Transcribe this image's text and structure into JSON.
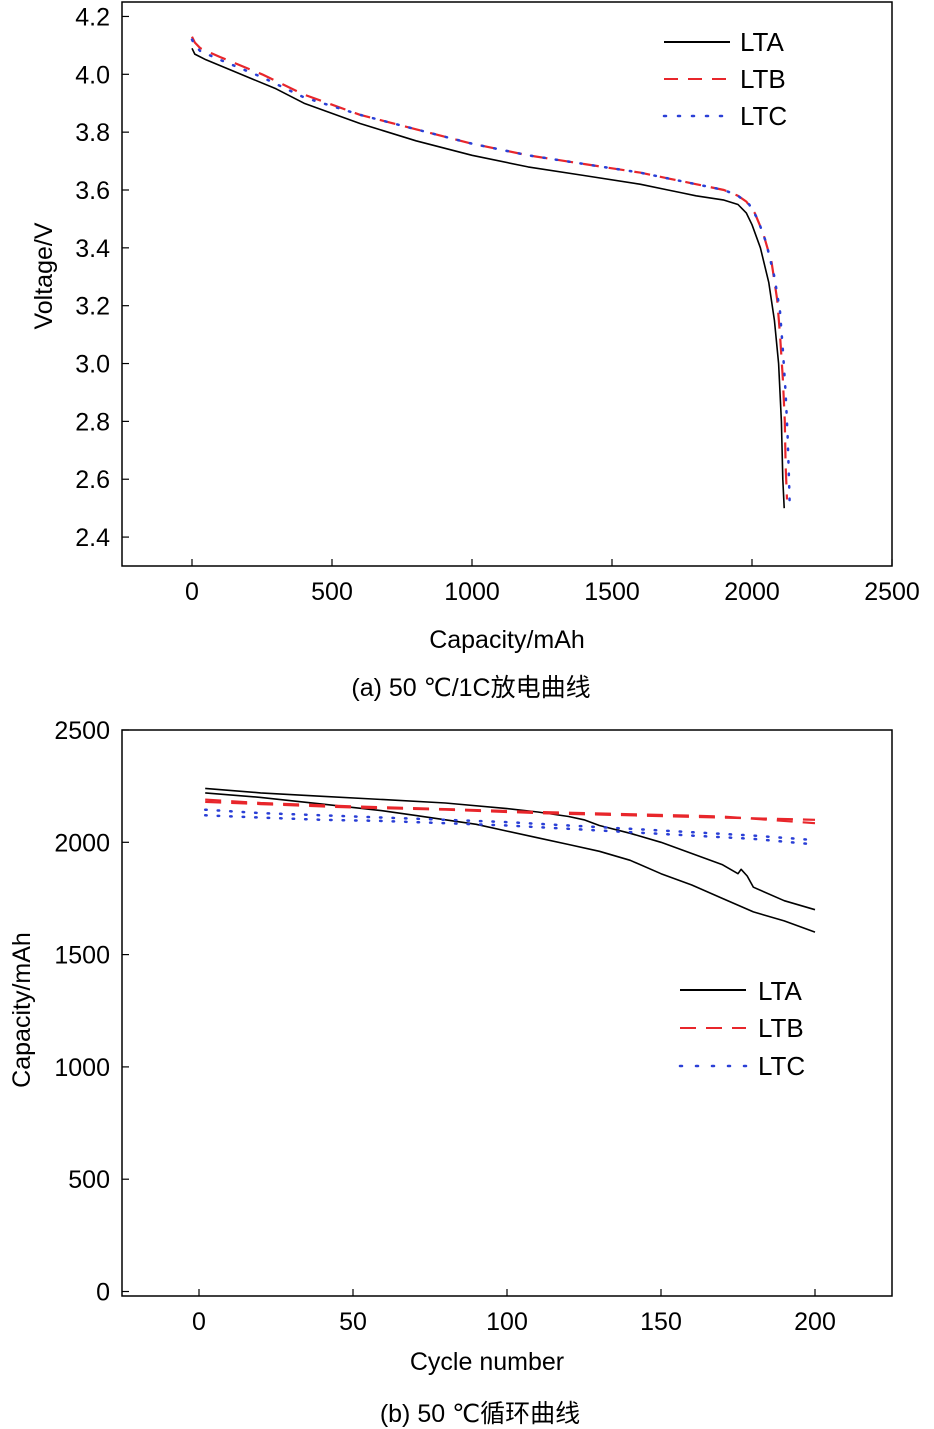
{
  "chart_data": [
    {
      "type": "line",
      "caption": "(a) 50 ℃/1C放电曲线",
      "xlabel": "Capacity/mAh",
      "ylabel": "Voltage/V",
      "xlim": [
        -250,
        2500
      ],
      "ylim": [
        2.3,
        4.25
      ],
      "xticks": [
        0,
        500,
        1000,
        1500,
        2000,
        2500
      ],
      "yticks": [
        2.4,
        2.6,
        2.8,
        3.0,
        3.2,
        3.4,
        3.6,
        3.8,
        4.0,
        4.2
      ],
      "xtick_labels": [
        "0",
        "500",
        "1000",
        "1500",
        "2000",
        "2500"
      ],
      "ytick_labels": [
        "2.4",
        "2.6",
        "2.8",
        "3.0",
        "3.2",
        "3.4",
        "3.6",
        "3.8",
        "4.0",
        "4.2"
      ],
      "legend_position": "top-right",
      "series": [
        {
          "name": "LTA",
          "color": "#000000",
          "style": "solid",
          "x": [
            0,
            10,
            50,
            150,
            300,
            400,
            600,
            800,
            1000,
            1200,
            1400,
            1600,
            1700,
            1750,
            1800,
            1900,
            1950,
            1980,
            2000,
            2030,
            2060,
            2080,
            2095,
            2105,
            2110,
            2115
          ],
          "y": [
            4.09,
            4.07,
            4.05,
            4.01,
            3.95,
            3.9,
            3.83,
            3.77,
            3.72,
            3.68,
            3.65,
            3.62,
            3.6,
            3.59,
            3.58,
            3.565,
            3.55,
            3.52,
            3.48,
            3.4,
            3.28,
            3.15,
            3.0,
            2.8,
            2.6,
            2.5
          ]
        },
        {
          "name": "LTB",
          "color": "#e8262b",
          "style": "dashed",
          "x": [
            0,
            10,
            30,
            100,
            250,
            400,
            600,
            800,
            1000,
            1200,
            1400,
            1600,
            1700,
            1800,
            1900,
            1950,
            1980,
            2010,
            2040,
            2070,
            2090,
            2100,
            2110,
            2117,
            2120,
            2125
          ],
          "y": [
            4.13,
            4.11,
            4.09,
            4.06,
            4.0,
            3.93,
            3.86,
            3.81,
            3.76,
            3.72,
            3.69,
            3.66,
            3.64,
            3.62,
            3.6,
            3.58,
            3.56,
            3.52,
            3.45,
            3.35,
            3.22,
            3.1,
            2.95,
            2.8,
            2.65,
            2.53
          ]
        },
        {
          "name": "LTC",
          "color": "#2a3fd6",
          "style": "dotted",
          "x": [
            0,
            10,
            30,
            100,
            250,
            400,
            600,
            800,
            1000,
            1200,
            1400,
            1600,
            1700,
            1800,
            1900,
            1950,
            1990,
            2020,
            2050,
            2080,
            2100,
            2110,
            2120,
            2127,
            2132,
            2135
          ],
          "y": [
            4.12,
            4.1,
            4.08,
            4.05,
            3.99,
            3.92,
            3.86,
            3.81,
            3.76,
            3.72,
            3.69,
            3.66,
            3.64,
            3.62,
            3.6,
            3.58,
            3.55,
            3.5,
            3.42,
            3.3,
            3.18,
            3.05,
            2.9,
            2.75,
            2.6,
            2.5
          ]
        }
      ]
    },
    {
      "type": "line",
      "caption": "(b) 50  ℃循环曲线",
      "xlabel": "Cycle number",
      "ylabel": "Capacity/mAh",
      "xlim": [
        -25,
        225
      ],
      "ylim": [
        -20,
        2500
      ],
      "xticks": [
        0,
        50,
        100,
        150,
        200
      ],
      "yticks": [
        0,
        500,
        1000,
        1500,
        2000,
        2500
      ],
      "xtick_labels": [
        "0",
        "50",
        "100",
        "150",
        "200"
      ],
      "ytick_labels": [
        "0",
        "500",
        "1000",
        "1500",
        "2000",
        "2500"
      ],
      "legend_position": "center-right",
      "series": [
        {
          "name": "LTA",
          "color": "#000000",
          "style": "solid",
          "x": [
            2,
            20,
            40,
            60,
            80,
            100,
            110,
            120,
            125,
            130,
            140,
            150,
            160,
            170,
            175,
            176,
            178,
            180,
            190,
            200
          ],
          "y": [
            2240,
            2220,
            2205,
            2190,
            2175,
            2150,
            2135,
            2115,
            2100,
            2075,
            2040,
            2000,
            1950,
            1900,
            1860,
            1880,
            1850,
            1800,
            1740,
            1700
          ]
        },
        {
          "name": "LTA",
          "color": "#000000",
          "style": "solid",
          "x": [
            2,
            20,
            40,
            60,
            70,
            80,
            90,
            100,
            110,
            120,
            130,
            140,
            150,
            160,
            170,
            180,
            190,
            200
          ],
          "y": [
            2220,
            2200,
            2170,
            2140,
            2120,
            2100,
            2080,
            2050,
            2020,
            1990,
            1960,
            1920,
            1860,
            1810,
            1750,
            1690,
            1650,
            1600
          ]
        },
        {
          "name": "LTB",
          "color": "#e8262b",
          "style": "dashed",
          "x": [
            2,
            20,
            50,
            80,
            110,
            140,
            170,
            200
          ],
          "y": [
            2180,
            2170,
            2155,
            2145,
            2130,
            2120,
            2110,
            2100
          ]
        },
        {
          "name": "LTB",
          "color": "#e8262b",
          "style": "dashed",
          "x": [
            2,
            20,
            50,
            80,
            110,
            140,
            170,
            200
          ],
          "y": [
            2190,
            2175,
            2160,
            2148,
            2135,
            2125,
            2115,
            2085
          ]
        },
        {
          "name": "LTC",
          "color": "#2a3fd6",
          "style": "dotted",
          "x": [
            2,
            20,
            40,
            60,
            80,
            100,
            120,
            140,
            160,
            180,
            200
          ],
          "y": [
            2120,
            2110,
            2100,
            2095,
            2085,
            2075,
            2060,
            2045,
            2030,
            2015,
            1990
          ]
        },
        {
          "name": "LTC",
          "color": "#2a3fd6",
          "style": "dotted",
          "x": [
            2,
            20,
            40,
            60,
            80,
            100,
            120,
            140,
            160,
            180,
            200
          ],
          "y": [
            2145,
            2130,
            2120,
            2110,
            2100,
            2090,
            2075,
            2060,
            2045,
            2030,
            2010
          ]
        }
      ]
    }
  ],
  "legend_labels": [
    "LTA",
    "LTB",
    "LTC"
  ]
}
